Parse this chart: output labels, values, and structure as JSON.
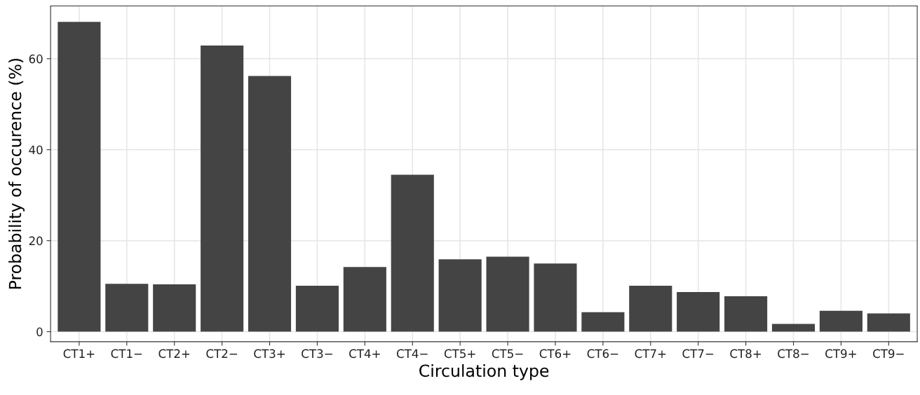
{
  "chart_data": {
    "type": "bar",
    "xlabel": "Circulation type",
    "ylabel": "Probability of occurence (%)",
    "categories": [
      "CT1+",
      "CT1−",
      "CT2+",
      "CT2−",
      "CT3+",
      "CT3−",
      "CT4+",
      "CT4−",
      "CT5+",
      "CT5−",
      "CT6+",
      "CT6−",
      "CT7+",
      "CT7−",
      "CT8+",
      "CT8−",
      "CT9+",
      "CT9−"
    ],
    "values": [
      68.1,
      10.5,
      10.4,
      62.9,
      56.2,
      10.1,
      14.2,
      34.5,
      15.9,
      16.5,
      15.0,
      4.3,
      10.1,
      8.7,
      7.8,
      1.7,
      4.6,
      4.0
    ],
    "color": "#444444",
    "ylim": [
      -2.2,
      71.6
    ],
    "yticks": [
      0,
      20,
      40,
      60
    ],
    "grid": true,
    "legend": false
  }
}
